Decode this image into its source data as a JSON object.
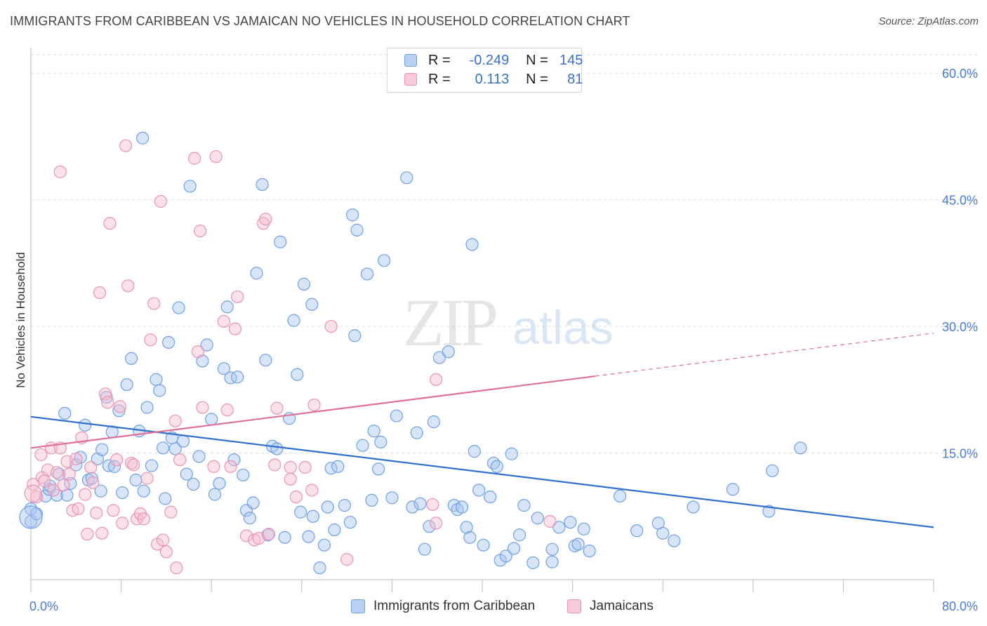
{
  "header": {
    "title": "IMMIGRANTS FROM CARIBBEAN VS JAMAICAN NO VEHICLES IN HOUSEHOLD CORRELATION CHART",
    "source": "Source: ZipAtlas.com"
  },
  "legend": {
    "rows": [
      {
        "r_label": "R =",
        "r_value": "-0.249",
        "n_label": "N =",
        "n_value": "145",
        "color": "#6fa0e3"
      },
      {
        "r_label": "R =",
        "r_value": "0.113",
        "n_label": "N =",
        "n_value": "81",
        "color": "#e894b2"
      }
    ]
  },
  "colors": {
    "blue_fill": "#a9c6f0",
    "blue_stroke": "#6fa0e3",
    "blue_line": "#2f6fd0",
    "pink_fill": "#f6bccf",
    "pink_stroke": "#e894b2",
    "pink_line": "#e0709a",
    "tick_label": "#4a7cd0",
    "grid": "#dcdcdc"
  },
  "chart_data": {
    "type": "scatter",
    "title": "IMMIGRANTS FROM CARIBBEAN VS JAMAICAN NO VEHICLES IN HOUSEHOLD CORRELATION CHART",
    "xlabel": "",
    "ylabel": "No Vehicles in Household",
    "xlim": [
      0,
      80
    ],
    "ylim": [
      0,
      63
    ],
    "x_tick_labels": [
      "0.0%",
      "80.0%"
    ],
    "y_ticks": [
      15,
      30,
      45,
      60
    ],
    "y_tick_labels": [
      "15.0%",
      "30.0%",
      "45.0%",
      "60.0%"
    ],
    "grid": true,
    "watermark": "ZIPatlas",
    "series": [
      {
        "name": "Immigrants from Caribbean",
        "r": -0.249,
        "n": 145,
        "trend": {
          "x0": 0,
          "y0": 19.3,
          "x1": 80,
          "y1": 6.2
        },
        "points": [
          [
            0.0,
            8.4
          ],
          [
            0.0,
            6.9
          ],
          [
            0.5,
            7.8
          ],
          [
            1.3,
            9.9
          ],
          [
            1.6,
            10.7
          ],
          [
            1.7,
            11.1
          ],
          [
            2.3,
            10.0
          ],
          [
            2.5,
            12.5
          ],
          [
            3.0,
            19.7
          ],
          [
            3.2,
            10.0
          ],
          [
            3.5,
            11.4
          ],
          [
            4.0,
            13.6
          ],
          [
            4.4,
            14.5
          ],
          [
            4.8,
            18.3
          ],
          [
            5.1,
            11.8
          ],
          [
            5.4,
            12.0
          ],
          [
            5.9,
            14.3
          ],
          [
            6.2,
            10.5
          ],
          [
            6.3,
            15.4
          ],
          [
            6.7,
            21.6
          ],
          [
            6.9,
            13.5
          ],
          [
            7.2,
            17.5
          ],
          [
            7.4,
            13.4
          ],
          [
            7.8,
            20.0
          ],
          [
            8.1,
            10.3
          ],
          [
            8.5,
            23.1
          ],
          [
            8.9,
            26.2
          ],
          [
            9.3,
            11.8
          ],
          [
            9.6,
            17.6
          ],
          [
            9.9,
            52.3
          ],
          [
            10.0,
            10.5
          ],
          [
            10.3,
            20.4
          ],
          [
            10.7,
            13.5
          ],
          [
            11.1,
            23.7
          ],
          [
            11.4,
            22.4
          ],
          [
            11.7,
            15.6
          ],
          [
            11.9,
            9.6
          ],
          [
            12.2,
            28.1
          ],
          [
            12.5,
            16.8
          ],
          [
            12.8,
            15.5
          ],
          [
            13.1,
            32.2
          ],
          [
            13.5,
            16.4
          ],
          [
            13.8,
            12.5
          ],
          [
            14.1,
            46.6
          ],
          [
            14.4,
            11.3
          ],
          [
            14.9,
            14.6
          ],
          [
            15.2,
            25.9
          ],
          [
            15.6,
            27.8
          ],
          [
            16.0,
            19.0
          ],
          [
            16.3,
            10.1
          ],
          [
            16.7,
            11.4
          ],
          [
            17.1,
            25.0
          ],
          [
            17.4,
            32.3
          ],
          [
            17.7,
            23.9
          ],
          [
            18.0,
            14.2
          ],
          [
            18.3,
            24.0
          ],
          [
            18.8,
            12.4
          ],
          [
            19.1,
            8.2
          ],
          [
            19.4,
            7.3
          ],
          [
            19.7,
            9.1
          ],
          [
            20.0,
            36.3
          ],
          [
            20.5,
            46.8
          ],
          [
            20.8,
            26.0
          ],
          [
            21.0,
            5.3
          ],
          [
            21.4,
            15.8
          ],
          [
            21.8,
            15.5
          ],
          [
            22.1,
            40.0
          ],
          [
            22.5,
            5.0
          ],
          [
            22.9,
            19.1
          ],
          [
            23.3,
            30.7
          ],
          [
            23.6,
            24.3
          ],
          [
            23.9,
            8.0
          ],
          [
            24.2,
            35.0
          ],
          [
            24.6,
            5.1
          ],
          [
            24.9,
            32.6
          ],
          [
            25.0,
            7.5
          ],
          [
            25.6,
            1.4
          ],
          [
            26.0,
            4.1
          ],
          [
            26.3,
            8.6
          ],
          [
            26.6,
            13.2
          ],
          [
            26.9,
            5.9
          ],
          [
            27.2,
            13.4
          ],
          [
            27.8,
            8.8
          ],
          [
            28.3,
            6.8
          ],
          [
            28.5,
            43.2
          ],
          [
            28.7,
            28.9
          ],
          [
            28.9,
            41.4
          ],
          [
            29.4,
            15.9
          ],
          [
            29.8,
            36.2
          ],
          [
            30.2,
            9.4
          ],
          [
            30.4,
            17.6
          ],
          [
            30.8,
            13.1
          ],
          [
            31.0,
            16.3
          ],
          [
            31.3,
            37.8
          ],
          [
            32.0,
            9.7
          ],
          [
            32.4,
            19.4
          ],
          [
            33.3,
            47.6
          ],
          [
            33.8,
            8.6
          ],
          [
            34.2,
            17.4
          ],
          [
            34.5,
            9.0
          ],
          [
            34.9,
            3.6
          ],
          [
            35.3,
            6.3
          ],
          [
            35.7,
            18.7
          ],
          [
            36.2,
            26.3
          ],
          [
            37.0,
            27.0
          ],
          [
            37.5,
            8.8
          ],
          [
            37.8,
            8.3
          ],
          [
            38.2,
            8.6
          ],
          [
            38.6,
            6.2
          ],
          [
            38.9,
            5.0
          ],
          [
            39.1,
            39.7
          ],
          [
            39.3,
            15.2
          ],
          [
            39.7,
            10.6
          ],
          [
            40.1,
            4.1
          ],
          [
            40.7,
            9.8
          ],
          [
            41.0,
            13.8
          ],
          [
            41.3,
            13.4
          ],
          [
            41.6,
            2.3
          ],
          [
            42.1,
            2.8
          ],
          [
            42.6,
            14.9
          ],
          [
            42.8,
            3.7
          ],
          [
            43.3,
            5.3
          ],
          [
            43.7,
            8.8
          ],
          [
            44.5,
            2.0
          ],
          [
            44.9,
            7.3
          ],
          [
            46.2,
            3.6
          ],
          [
            46.2,
            2.1
          ],
          [
            46.8,
            6.2
          ],
          [
            47.8,
            6.8
          ],
          [
            48.2,
            4.0
          ],
          [
            48.5,
            4.2
          ],
          [
            49.0,
            6.0
          ],
          [
            49.5,
            3.4
          ],
          [
            52.2,
            9.9
          ],
          [
            53.7,
            5.8
          ],
          [
            55.6,
            6.7
          ],
          [
            56.0,
            5.5
          ],
          [
            57.0,
            4.6
          ],
          [
            58.7,
            8.6
          ],
          [
            62.2,
            10.7
          ],
          [
            65.4,
            8.1
          ],
          [
            65.7,
            12.9
          ],
          [
            68.2,
            15.6
          ]
        ]
      },
      {
        "name": "Jamaicans",
        "r": 0.113,
        "n": 81,
        "trend": {
          "x0": 0,
          "y0": 15.6,
          "x1": 50,
          "y1": 24.1,
          "dashed_to": {
            "x": 80,
            "y": 29.2
          }
        },
        "points": [
          [
            0.2,
            11.3
          ],
          [
            0.5,
            9.8
          ],
          [
            0.9,
            14.8
          ],
          [
            1.0,
            12.1
          ],
          [
            1.2,
            11.7
          ],
          [
            1.5,
            13.0
          ],
          [
            1.8,
            15.6
          ],
          [
            2.0,
            10.6
          ],
          [
            2.3,
            12.7
          ],
          [
            2.6,
            48.3
          ],
          [
            2.6,
            15.6
          ],
          [
            2.9,
            11.2
          ],
          [
            3.2,
            14.0
          ],
          [
            3.4,
            12.5
          ],
          [
            3.7,
            8.2
          ],
          [
            4.0,
            14.3
          ],
          [
            4.2,
            8.4
          ],
          [
            4.5,
            16.8
          ],
          [
            4.8,
            10.1
          ],
          [
            5.0,
            5.4
          ],
          [
            5.3,
            13.3
          ],
          [
            5.5,
            11.5
          ],
          [
            5.8,
            7.9
          ],
          [
            6.1,
            34.0
          ],
          [
            6.3,
            5.5
          ],
          [
            6.6,
            22.0
          ],
          [
            6.8,
            21.0
          ],
          [
            7.0,
            42.2
          ],
          [
            7.3,
            8.2
          ],
          [
            7.6,
            14.2
          ],
          [
            7.9,
            20.5
          ],
          [
            8.1,
            6.7
          ],
          [
            8.4,
            51.4
          ],
          [
            8.6,
            34.8
          ],
          [
            8.9,
            13.8
          ],
          [
            9.1,
            13.6
          ],
          [
            9.4,
            7.2
          ],
          [
            9.7,
            7.8
          ],
          [
            10.0,
            7.2
          ],
          [
            10.3,
            12.0
          ],
          [
            10.6,
            28.4
          ],
          [
            10.9,
            32.7
          ],
          [
            11.2,
            4.2
          ],
          [
            11.5,
            44.8
          ],
          [
            11.7,
            4.7
          ],
          [
            12.0,
            3.3
          ],
          [
            12.4,
            8.0
          ],
          [
            12.8,
            18.8
          ],
          [
            12.9,
            1.4
          ],
          [
            13.2,
            14.2
          ],
          [
            14.5,
            49.9
          ],
          [
            14.8,
            27.0
          ],
          [
            15.0,
            41.3
          ],
          [
            15.2,
            20.4
          ],
          [
            16.2,
            13.4
          ],
          [
            16.4,
            50.1
          ],
          [
            17.1,
            30.6
          ],
          [
            17.4,
            20.1
          ],
          [
            17.7,
            13.4
          ],
          [
            18.1,
            29.7
          ],
          [
            18.3,
            33.5
          ],
          [
            19.1,
            5.2
          ],
          [
            19.8,
            4.7
          ],
          [
            20.2,
            4.9
          ],
          [
            20.6,
            42.2
          ],
          [
            20.8,
            42.7
          ],
          [
            21.1,
            5.4
          ],
          [
            21.6,
            13.6
          ],
          [
            21.8,
            20.3
          ],
          [
            23.0,
            13.3
          ],
          [
            23.5,
            9.8
          ],
          [
            24.3,
            13.3
          ],
          [
            24.9,
            10.6
          ],
          [
            25.1,
            20.7
          ],
          [
            26.6,
            30.0
          ],
          [
            28.0,
            2.4
          ],
          [
            35.9,
            23.7
          ],
          [
            35.9,
            6.7
          ],
          [
            35.6,
            8.9
          ],
          [
            46.0,
            6.9
          ],
          [
            23.0,
            11.9
          ]
        ]
      }
    ]
  },
  "bottom_legend": {
    "items": [
      {
        "label": "Immigrants from Caribbean"
      },
      {
        "label": "Jamaicans"
      }
    ]
  }
}
